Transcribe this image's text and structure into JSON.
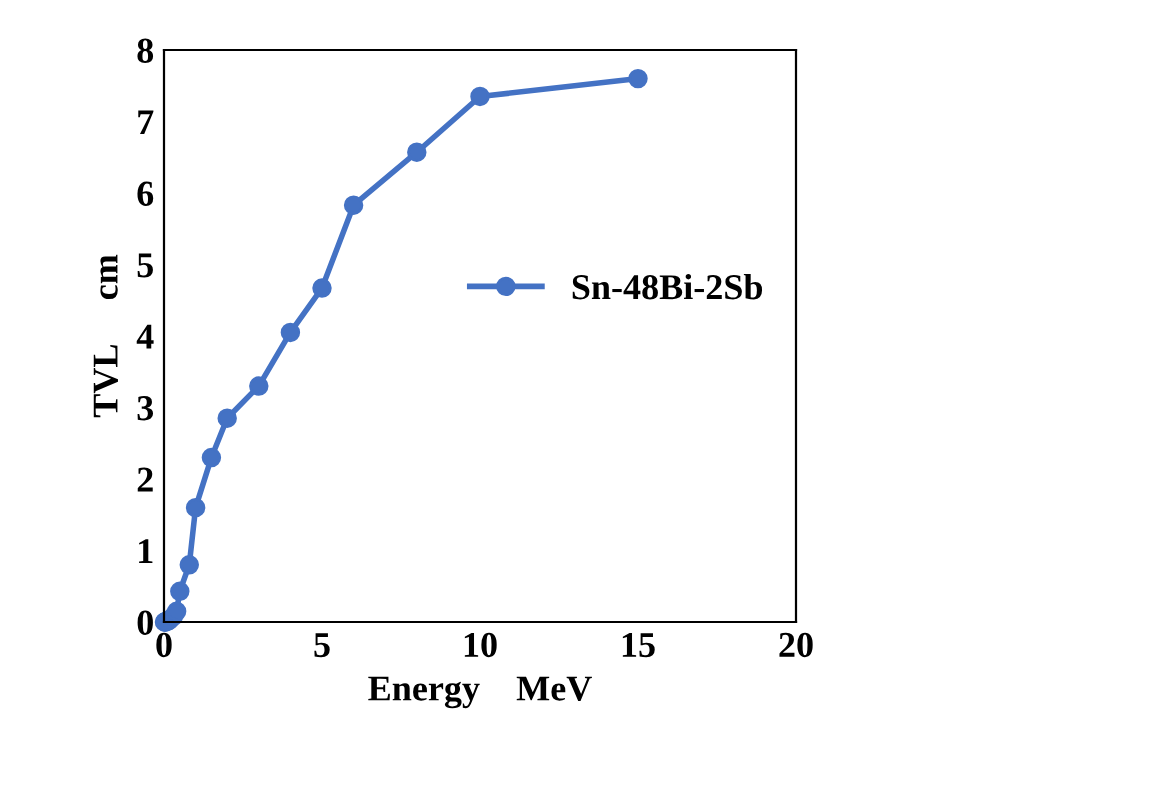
{
  "chart_data": {
    "type": "line",
    "xlabel": "Energy    MeV",
    "ylabel": "TVL     cm",
    "x": [
      0.015,
      0.03,
      0.05,
      0.08,
      0.1,
      0.15,
      0.2,
      0.3,
      0.4,
      0.5,
      0.8,
      1,
      1.5,
      2,
      3,
      4,
      5,
      6,
      8,
      10,
      15
    ],
    "series": [
      {
        "name": "Sn-48Bi-2Sb",
        "color": "#4472c4",
        "values": [
          0.0,
          0.0,
          0.0,
          0.01,
          0.01,
          0.02,
          0.04,
          0.08,
          0.15,
          0.43,
          0.8,
          1.6,
          2.3,
          2.85,
          3.3,
          4.05,
          4.67,
          5.83,
          6.57,
          7.35,
          7.6
        ]
      }
    ],
    "xlim": [
      0,
      20
    ],
    "xticks": [
      0,
      5,
      10,
      15,
      20
    ],
    "ylim": [
      0,
      8
    ],
    "yticks": [
      0,
      1,
      2,
      3,
      4,
      5,
      6,
      7,
      8
    ],
    "grid": false,
    "legend": "right",
    "marker": "circle",
    "line_style": "solid"
  }
}
